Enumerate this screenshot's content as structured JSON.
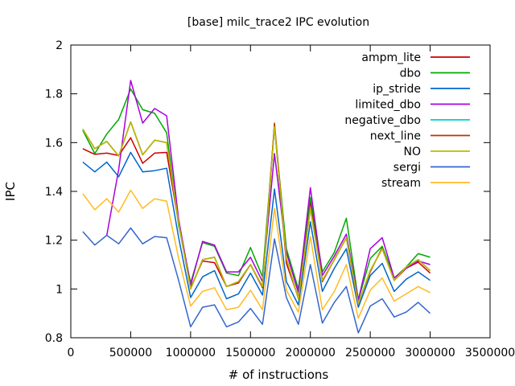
{
  "chart_data": {
    "type": "line",
    "title": "[base] milc_trace2 IPC evolution",
    "xlabel": "# of instructions",
    "ylabel": "IPC",
    "xlim": [
      0,
      3500000
    ],
    "ylim": [
      0.8,
      2.0
    ],
    "xticks": [
      0,
      500000,
      1000000,
      1500000,
      2000000,
      2500000,
      3000000,
      3500000
    ],
    "xtick_labels": [
      "0",
      "500000",
      "1000000",
      "1500000",
      "2000000",
      "2500000",
      "3000000",
      "3500000"
    ],
    "yticks": [
      0.8,
      1.0,
      1.2,
      1.4,
      1.6,
      1.8,
      2.0
    ],
    "ytick_labels": [
      "0.8",
      "1",
      "1.2",
      "1.4",
      "1.6",
      "1.8",
      "2"
    ],
    "grid": false,
    "legend_position": "top-right",
    "x": [
      100000,
      200000,
      300000,
      400000,
      500000,
      600000,
      700000,
      800000,
      900000,
      1000000,
      1100000,
      1200000,
      1300000,
      1400000,
      1500000,
      1600000,
      1700000,
      1800000,
      1900000,
      2000000,
      2100000,
      2200000,
      2300000,
      2400000,
      2500000,
      2600000,
      2700000,
      2800000,
      2900000,
      3000000
    ],
    "series": [
      {
        "name": "ampm_lite",
        "color": "#cc0000",
        "values": [
          1.575,
          1.552,
          1.557,
          1.547,
          1.62,
          1.515,
          1.557,
          1.56,
          1.27,
          1.005,
          1.115,
          1.108,
          1.01,
          1.025,
          1.1,
          1.005,
          1.672,
          1.105,
          0.965,
          1.36,
          1.03,
          1.12,
          1.21,
          0.94,
          1.07,
          1.17,
          1.035,
          1.085,
          1.11,
          1.065
        ]
      },
      {
        "name": "dbo",
        "color": "#00aa00",
        "values": [
          1.65,
          1.555,
          1.635,
          1.695,
          1.82,
          1.735,
          1.72,
          1.64,
          1.26,
          1.025,
          1.19,
          1.175,
          1.065,
          1.055,
          1.17,
          1.05,
          1.665,
          1.165,
          1.0,
          1.375,
          1.07,
          1.15,
          1.29,
          0.955,
          1.125,
          1.175,
          1.045,
          1.09,
          1.145,
          1.13
        ]
      },
      {
        "name": "ip_stride",
        "color": "#0066cc",
        "values": [
          1.52,
          1.48,
          1.52,
          1.46,
          1.56,
          1.48,
          1.485,
          1.495,
          1.21,
          0.965,
          1.05,
          1.075,
          0.96,
          0.98,
          1.065,
          0.975,
          1.41,
          1.03,
          0.935,
          1.275,
          0.99,
          1.085,
          1.165,
          0.925,
          1.055,
          1.105,
          0.99,
          1.04,
          1.07,
          1.035
        ]
      },
      {
        "name": "limited_dbo",
        "color": "#aa00dd",
        "values": [
          null,
          null,
          1.22,
          1.49,
          1.855,
          1.68,
          1.74,
          1.71,
          1.285,
          1.015,
          1.195,
          1.18,
          1.07,
          1.07,
          1.13,
          1.03,
          1.555,
          1.15,
          0.985,
          1.415,
          1.055,
          1.135,
          1.225,
          0.955,
          1.165,
          1.21,
          1.045,
          1.085,
          1.115,
          1.1
        ]
      },
      {
        "name": "negative_dbo",
        "color": "#00cccc",
        "values": [
          1.655,
          1.575,
          1.605,
          1.545,
          1.685,
          1.55,
          1.61,
          1.6,
          1.27,
          1.0,
          1.12,
          1.13,
          1.01,
          1.03,
          1.1,
          1.01,
          1.665,
          1.125,
          0.96,
          1.33,
          1.035,
          1.12,
          1.21,
          0.94,
          1.075,
          1.165,
          1.035,
          1.09,
          1.12,
          1.075
        ]
      },
      {
        "name": "next_line",
        "color": "#bb3300",
        "values": [
          1.655,
          1.575,
          1.605,
          1.545,
          1.685,
          1.55,
          1.61,
          1.6,
          1.27,
          1.0,
          1.12,
          1.13,
          1.01,
          1.03,
          1.1,
          1.01,
          1.68,
          1.125,
          0.96,
          1.33,
          1.035,
          1.12,
          1.21,
          0.94,
          1.075,
          1.165,
          1.035,
          1.09,
          1.12,
          1.075
        ]
      },
      {
        "name": "NO",
        "color": "#bbbb00",
        "values": [
          1.655,
          1.575,
          1.605,
          1.545,
          1.685,
          1.55,
          1.61,
          1.6,
          1.27,
          1.0,
          1.12,
          1.13,
          1.01,
          1.03,
          1.1,
          1.01,
          1.665,
          1.125,
          0.96,
          1.33,
          1.035,
          1.12,
          1.21,
          0.94,
          1.075,
          1.165,
          1.035,
          1.09,
          1.12,
          1.075
        ]
      },
      {
        "name": "sergi",
        "color": "#3366cc",
        "values": [
          1.235,
          1.18,
          1.22,
          1.185,
          1.25,
          1.185,
          1.215,
          1.21,
          1.035,
          0.845,
          0.925,
          0.935,
          0.845,
          0.865,
          0.92,
          0.855,
          1.205,
          0.965,
          0.855,
          1.1,
          0.86,
          0.945,
          1.01,
          0.82,
          0.93,
          0.96,
          0.885,
          0.905,
          0.945,
          0.9
        ]
      },
      {
        "name": "stream",
        "color": "#ffbb22",
        "values": [
          1.39,
          1.325,
          1.37,
          1.315,
          1.405,
          1.33,
          1.37,
          1.36,
          1.125,
          0.93,
          0.99,
          1.005,
          0.915,
          0.925,
          0.995,
          0.915,
          1.33,
          0.995,
          0.905,
          1.215,
          0.915,
          0.99,
          1.1,
          0.88,
          0.995,
          1.045,
          0.95,
          0.98,
          1.01,
          0.985
        ]
      }
    ]
  }
}
